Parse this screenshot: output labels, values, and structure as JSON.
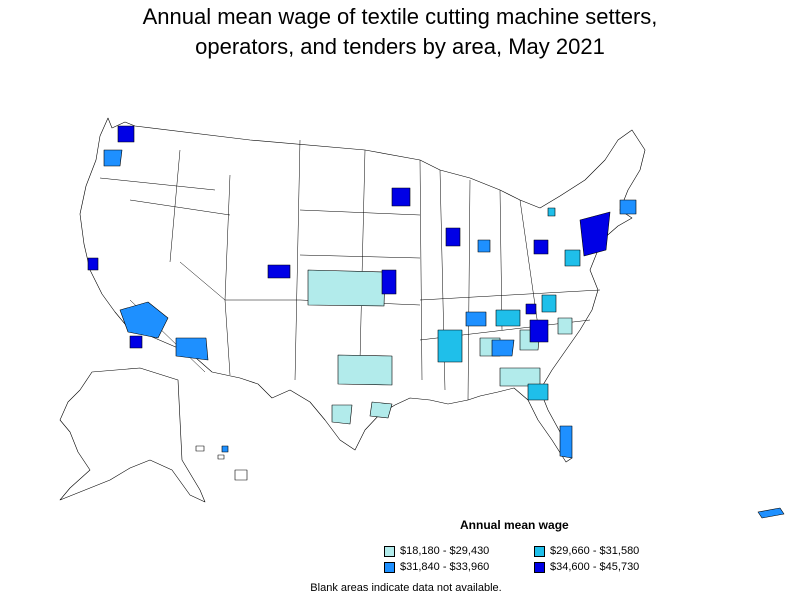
{
  "title_line1": "Annual mean wage of textile cutting machine setters,",
  "title_line2": "operators, and tenders by area, May 2021",
  "legend": {
    "title": "Annual mean wage",
    "items": [
      {
        "label": "$18,180 - $29,430",
        "color": "#b2ebeb"
      },
      {
        "label": "$29,660 - $31,580",
        "color": "#1fbfea"
      },
      {
        "label": "$31,840 - $33,960",
        "color": "#1e90ff"
      },
      {
        "label": "$34,600 - $45,730",
        "color": "#0000e6"
      }
    ]
  },
  "note": "Blank areas indicate data not available.",
  "colors": {
    "blank": "#ffffff",
    "border": "#000000"
  }
}
